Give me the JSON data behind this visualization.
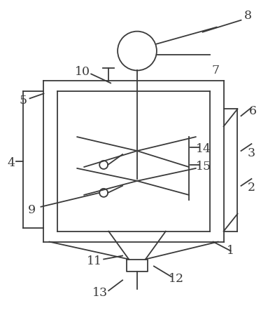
{
  "fig_width": 3.93,
  "fig_height": 4.59,
  "dpi": 100,
  "line_color": "#3a3a3a",
  "bg_color": "#ffffff",
  "lw": 1.3
}
